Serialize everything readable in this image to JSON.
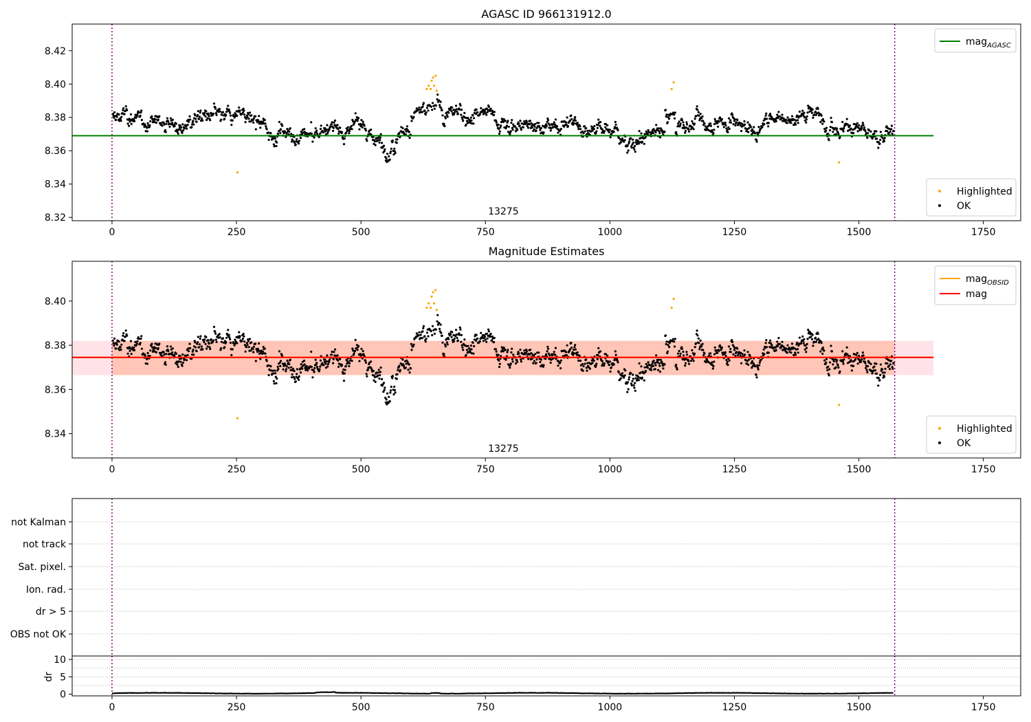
{
  "chart_data": [
    {
      "type": "scatter",
      "title": "AGASC ID 966131912.0",
      "xlabel": "",
      "ylabel": "",
      "xlim": [
        -80,
        1825
      ],
      "ylim": [
        8.318,
        8.436
      ],
      "xticks": [
        0,
        250,
        500,
        750,
        1000,
        1250,
        1500,
        1750
      ],
      "yticks": [
        8.32,
        8.34,
        8.36,
        8.38,
        8.4,
        8.42
      ],
      "obsid_annotation": "13275",
      "obsid_boundaries": [
        0,
        1572
      ],
      "reference_lines": [
        {
          "name": "mag_AGASC",
          "legend_main": "mag",
          "legend_sub": "AGASC",
          "y": 8.369,
          "x_range": [
            -80,
            1650
          ],
          "color": "#008000"
        }
      ],
      "legends": [
        {
          "position": "top-right",
          "entries": [
            {
              "label": "mag",
              "sub": "AGASC",
              "kind": "line",
              "color": "#008000"
            }
          ]
        },
        {
          "position": "bottom-right",
          "entries": [
            {
              "label": "Highlighted",
              "kind": "dot",
              "color": "#FFA500"
            },
            {
              "label": "OK",
              "kind": "dot",
              "color": "#000000"
            }
          ]
        }
      ],
      "series": [
        {
          "name": "OK",
          "color": "#000000",
          "description": "~1570 magnitude samples spanning x 0–1572, mean 8.375, range 8.355–8.395"
        },
        {
          "name": "Highlighted",
          "color": "#FFA500",
          "points": [
            [
              252,
              8.347
            ],
            [
              1460,
              8.353
            ],
            [
              632,
              8.397
            ],
            [
              636,
              8.399
            ],
            [
              640,
              8.397
            ],
            [
              642,
              8.402
            ],
            [
              645,
              8.404
            ],
            [
              647,
              8.399
            ],
            [
              650,
              8.405
            ],
            [
              652,
              8.396
            ],
            [
              1124,
              8.397
            ],
            [
              1128,
              8.401
            ]
          ]
        }
      ]
    },
    {
      "type": "scatter",
      "title": "Magnitude Estimates",
      "xlim": [
        -80,
        1825
      ],
      "ylim": [
        8.329,
        8.418
      ],
      "xticks": [
        0,
        250,
        500,
        750,
        1000,
        1250,
        1500,
        1750
      ],
      "yticks": [
        8.34,
        8.36,
        8.38,
        8.4
      ],
      "obsid_annotation": "13275",
      "obsid_boundaries": [
        0,
        1572
      ],
      "reference_lines": [
        {
          "name": "mag_OBSID",
          "legend_main": "mag",
          "legend_sub": "OBSID",
          "y": 8.3745,
          "x_range": [
            -80,
            1650
          ],
          "color": "#FFA500"
        },
        {
          "name": "mag",
          "legend_main": "mag",
          "y": 8.3745,
          "x_range": [
            -80,
            1650
          ],
          "color": "#FF0000"
        }
      ],
      "bands": [
        {
          "name": "mag_err",
          "y_range": [
            8.3665,
            8.382
          ],
          "x_range": [
            -80,
            1650
          ],
          "color": "#FFC0CB"
        },
        {
          "name": "obsid_err",
          "y_range": [
            8.3665,
            8.382
          ],
          "x_range": [
            0,
            1572
          ],
          "color": "#FFA07A"
        }
      ],
      "legends": [
        {
          "position": "top-right",
          "entries": [
            {
              "label": "mag",
              "sub": "OBSID",
              "kind": "line",
              "color": "#FFA500"
            },
            {
              "label": "mag",
              "kind": "line",
              "color": "#FF0000"
            }
          ]
        },
        {
          "position": "bottom-right",
          "entries": [
            {
              "label": "Highlighted",
              "kind": "dot",
              "color": "#FFA500"
            },
            {
              "label": "OK",
              "kind": "dot",
              "color": "#000000"
            }
          ]
        }
      ],
      "series": [
        {
          "name": "OK",
          "color": "#000000",
          "description": "same samples as panel 1"
        },
        {
          "name": "Highlighted",
          "color": "#FFA500",
          "points": [
            [
              252,
              8.347
            ],
            [
              1460,
              8.353
            ],
            [
              632,
              8.397
            ],
            [
              636,
              8.399
            ],
            [
              640,
              8.397
            ],
            [
              642,
              8.402
            ],
            [
              645,
              8.404
            ],
            [
              647,
              8.399
            ],
            [
              650,
              8.405
            ],
            [
              652,
              8.396
            ],
            [
              1124,
              8.397
            ],
            [
              1128,
              8.401
            ]
          ]
        }
      ]
    },
    {
      "type": "scatter",
      "title": "",
      "xlim": [
        -80,
        1825
      ],
      "categories": [
        "not Kalman",
        "not track",
        "Sat. pixel.",
        "Ion. rad.",
        "dr > 5",
        "OBS not OK"
      ],
      "obsid_boundaries": [
        0,
        1572
      ],
      "series": []
    },
    {
      "type": "line",
      "title": "",
      "ylabel": "dr",
      "xlim": [
        -80,
        1825
      ],
      "ylim": [
        -0.5,
        11
      ],
      "xticks": [
        0,
        250,
        500,
        750,
        1000,
        1250,
        1500,
        1750
      ],
      "yticks": [
        0,
        5,
        10
      ],
      "obsid_boundaries": [
        0,
        1572
      ],
      "series": [
        {
          "name": "dr",
          "color": "#000000",
          "description": "dr between 0.05 and 0.5 across x 0–1572"
        }
      ]
    }
  ]
}
